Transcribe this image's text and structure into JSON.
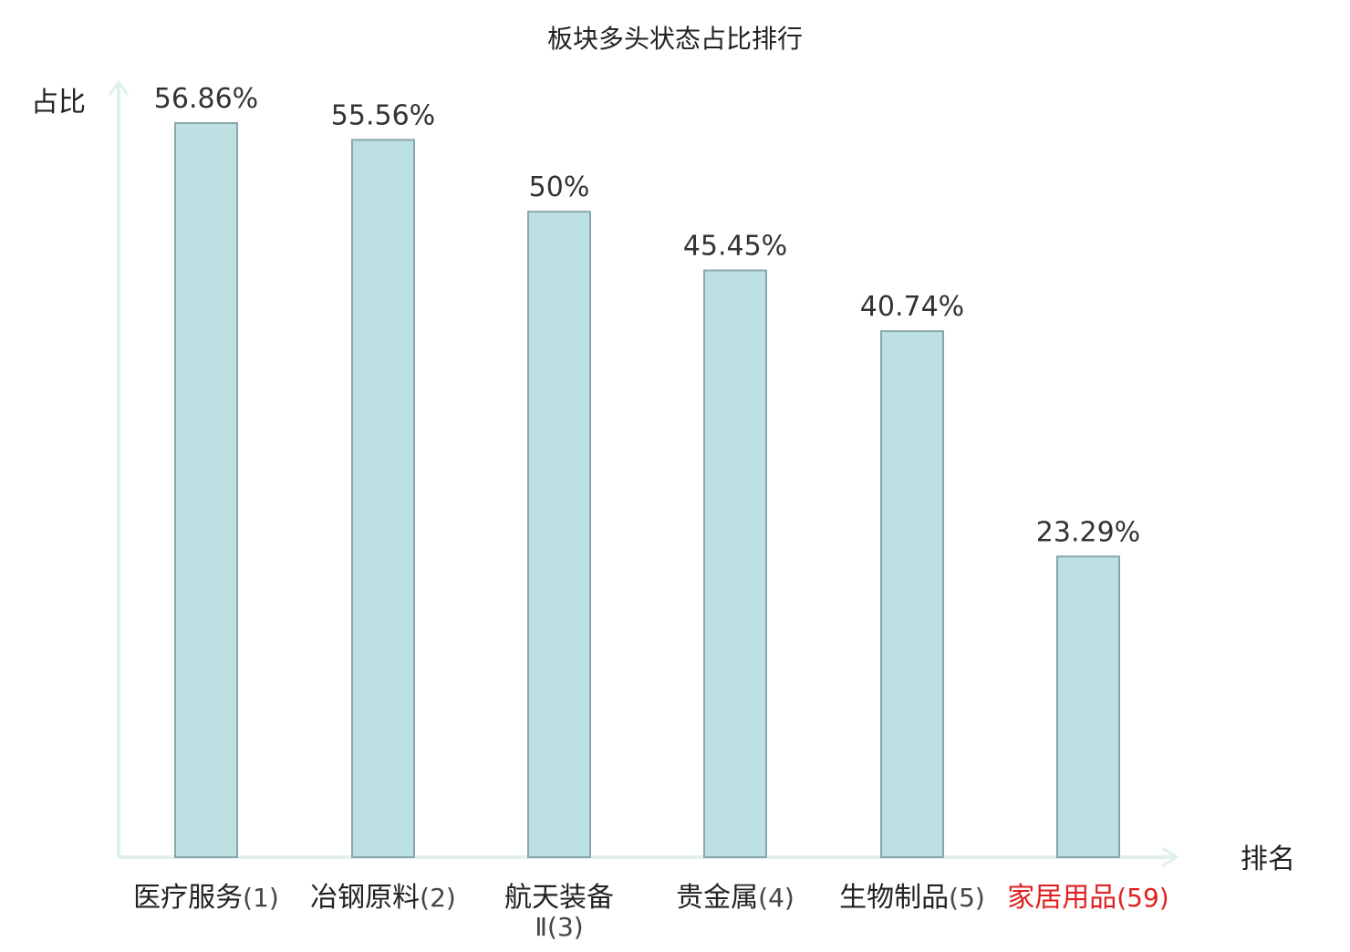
{
  "chart_data": {
    "type": "bar",
    "title": "板块多头状态占比排行",
    "ylabel": "占比",
    "xlabel": "排名",
    "ylim": [
      0,
      60
    ],
    "grid": false,
    "categories": [
      {
        "name": "医疗服务",
        "rank": "(1)",
        "highlight": false
      },
      {
        "name": "冶钢原料",
        "rank": "(2)",
        "highlight": false
      },
      {
        "name": "航天装备Ⅱ",
        "rank": "(3)",
        "highlight": false
      },
      {
        "name": "贵金属",
        "rank": "(4)",
        "highlight": false
      },
      {
        "name": "生物制品",
        "rank": "(5)",
        "highlight": false
      },
      {
        "name": "家居用品",
        "rank": "(59)",
        "highlight": true
      }
    ],
    "values": [
      56.86,
      55.56,
      50,
      45.45,
      40.74,
      23.29
    ],
    "value_labels": [
      "56.86%",
      "55.56%",
      "50%",
      "45.45%",
      "40.74%",
      "23.29%"
    ]
  },
  "colors": {
    "bar_fill": "#bde0e3",
    "bar_stroke": "#8aa6aa",
    "axis": "#dff0ee",
    "text": "#333333",
    "highlight": "#e02020"
  }
}
